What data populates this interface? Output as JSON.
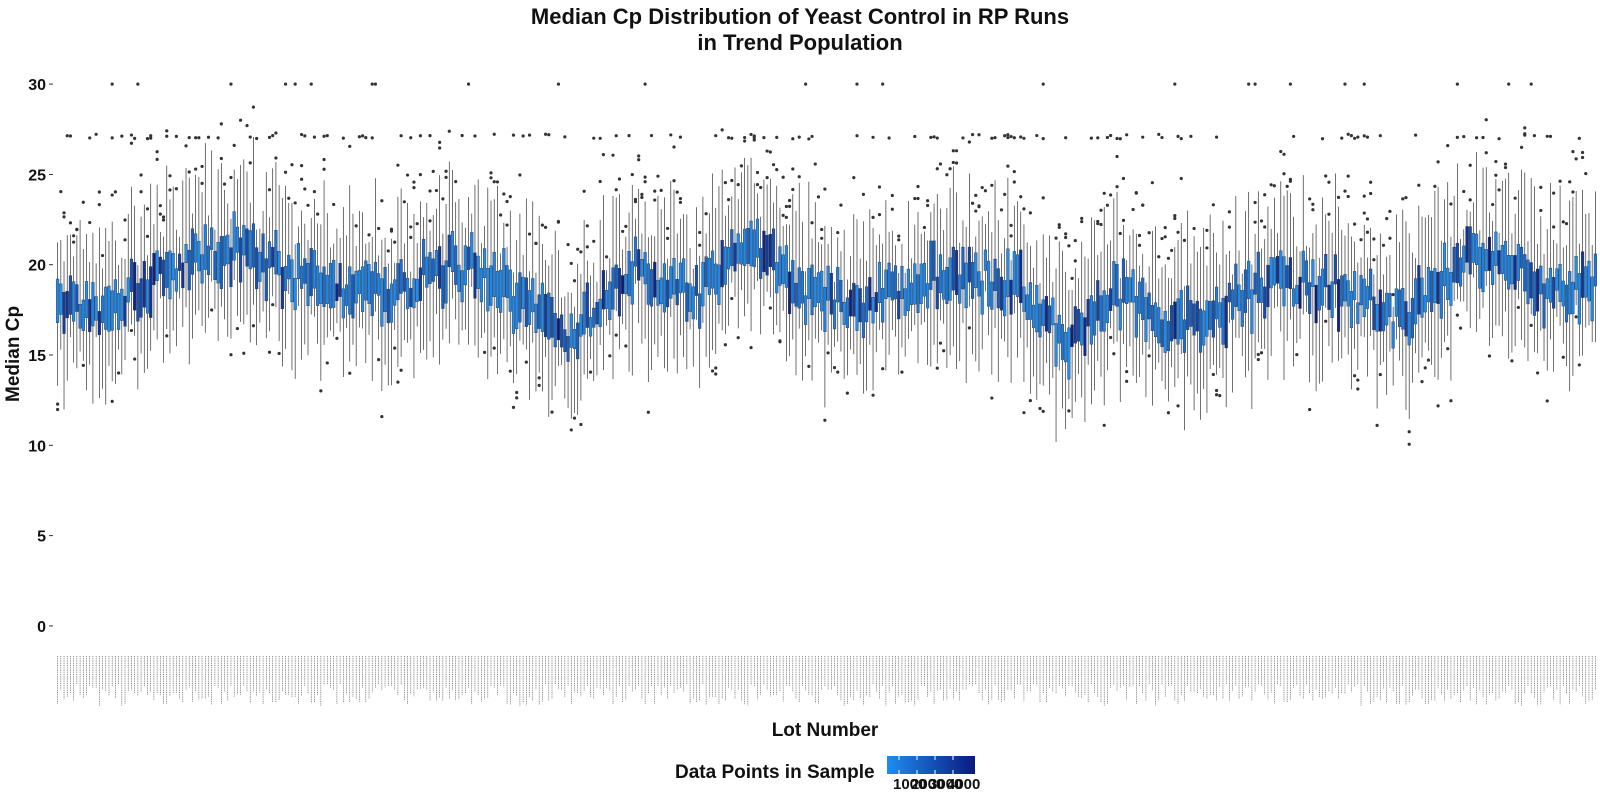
{
  "chart_data": {
    "type": "box",
    "title": [
      "Median Cp Distribution of Yeast Control in RP Runs",
      "in Trend Population"
    ],
    "xlabel": "Lot Number",
    "ylabel": "Median Cp",
    "ylim": [
      -1.5,
      32
    ],
    "yticks": [
      0,
      5,
      10,
      15,
      20,
      25,
      30
    ],
    "grid": false,
    "legend": {
      "title": "Data Points in Sample",
      "placement": "bottom",
      "scale_colors": [
        "#1f8cf0",
        "#0a1a80"
      ],
      "tick_labels": [
        "1000",
        "2000",
        "3000",
        "4000"
      ]
    },
    "n_boxes": 480,
    "median_trend": [
      [
        0,
        18.3
      ],
      [
        15,
        17.5
      ],
      [
        35,
        19.8
      ],
      [
        55,
        20.8
      ],
      [
        70,
        19.5
      ],
      [
        85,
        18.5
      ],
      [
        105,
        18.6
      ],
      [
        125,
        19.8
      ],
      [
        140,
        18.6
      ],
      [
        160,
        15.8
      ],
      [
        180,
        19.8
      ],
      [
        200,
        18.6
      ],
      [
        215,
        20.8
      ],
      [
        235,
        18.3
      ],
      [
        250,
        17.5
      ],
      [
        265,
        18.6
      ],
      [
        280,
        19.8
      ],
      [
        300,
        18.6
      ],
      [
        315,
        15.6
      ],
      [
        330,
        18.5
      ],
      [
        345,
        16.5
      ],
      [
        360,
        17.3
      ],
      [
        380,
        19.2
      ],
      [
        395,
        18.8
      ],
      [
        420,
        16.8
      ],
      [
        435,
        20.0
      ],
      [
        450,
        20.8
      ],
      [
        465,
        18.3
      ],
      [
        480,
        18.8
      ]
    ]
  }
}
